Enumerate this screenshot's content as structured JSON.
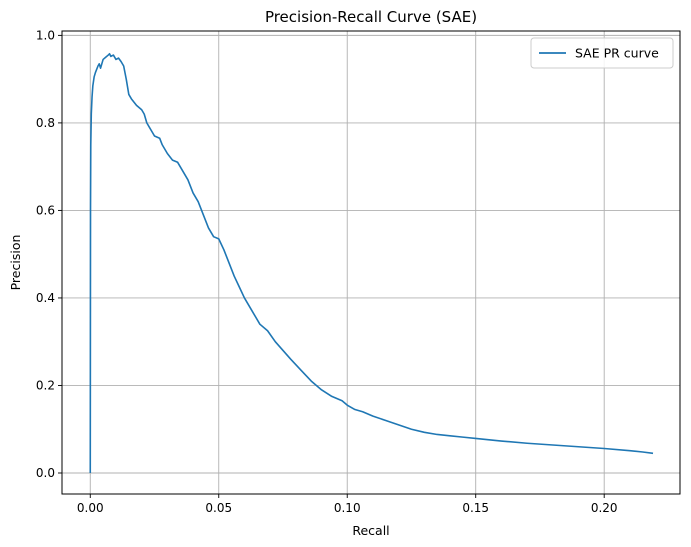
{
  "chart_data": {
    "type": "line",
    "title": "Precision-Recall Curve (SAE)",
    "xlabel": "Recall",
    "ylabel": "Precision",
    "xlim": [
      -0.011,
      0.2295
    ],
    "ylim": [
      -0.048,
      1.01
    ],
    "xticks": [
      0.0,
      0.05,
      0.1,
      0.15,
      0.2
    ],
    "xtick_labels": [
      "0.00",
      "0.05",
      "0.10",
      "0.15",
      "0.20"
    ],
    "yticks": [
      0.0,
      0.2,
      0.4,
      0.6,
      0.8,
      1.0
    ],
    "ytick_labels": [
      "0.0",
      "0.2",
      "0.4",
      "0.6",
      "0.8",
      "1.0"
    ],
    "grid": true,
    "legend_position": "top-right",
    "series": [
      {
        "name": "SAE PR curve",
        "color": "#1f77b4",
        "x": [
          0.0,
          0.0001,
          0.0002,
          0.0004,
          0.0007,
          0.001,
          0.0015,
          0.002,
          0.003,
          0.0035,
          0.004,
          0.005,
          0.006,
          0.007,
          0.0075,
          0.008,
          0.009,
          0.01,
          0.011,
          0.012,
          0.013,
          0.014,
          0.015,
          0.016,
          0.018,
          0.02,
          0.021,
          0.022,
          0.024,
          0.025,
          0.027,
          0.028,
          0.03,
          0.032,
          0.034,
          0.036,
          0.038,
          0.04,
          0.042,
          0.044,
          0.046,
          0.048,
          0.05,
          0.052,
          0.054,
          0.056,
          0.058,
          0.06,
          0.063,
          0.066,
          0.069,
          0.072,
          0.075,
          0.078,
          0.082,
          0.086,
          0.09,
          0.094,
          0.098,
          0.1,
          0.103,
          0.106,
          0.11,
          0.115,
          0.12,
          0.125,
          0.13,
          0.135,
          0.14,
          0.145,
          0.15,
          0.16,
          0.17,
          0.18,
          0.19,
          0.2,
          0.21,
          0.215,
          0.219
        ],
        "y": [
          0.0,
          0.6,
          0.75,
          0.82,
          0.86,
          0.885,
          0.905,
          0.915,
          0.93,
          0.935,
          0.925,
          0.945,
          0.95,
          0.955,
          0.958,
          0.952,
          0.955,
          0.945,
          0.948,
          0.94,
          0.93,
          0.9,
          0.865,
          0.855,
          0.84,
          0.83,
          0.82,
          0.8,
          0.78,
          0.77,
          0.765,
          0.75,
          0.73,
          0.715,
          0.71,
          0.69,
          0.67,
          0.64,
          0.62,
          0.59,
          0.56,
          0.54,
          0.535,
          0.51,
          0.48,
          0.45,
          0.425,
          0.4,
          0.37,
          0.34,
          0.325,
          0.3,
          0.28,
          0.26,
          0.235,
          0.21,
          0.19,
          0.175,
          0.165,
          0.155,
          0.145,
          0.14,
          0.13,
          0.12,
          0.11,
          0.1,
          0.093,
          0.088,
          0.085,
          0.082,
          0.079,
          0.073,
          0.068,
          0.064,
          0.06,
          0.056,
          0.051,
          0.048,
          0.045
        ]
      }
    ]
  }
}
